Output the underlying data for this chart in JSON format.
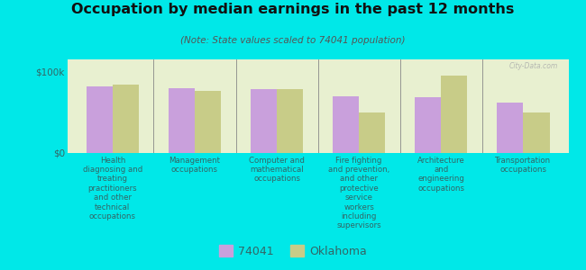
{
  "title": "Occupation by median earnings in the past 12 months",
  "subtitle": "(Note: State values scaled to 74041 population)",
  "background_color": "#00e8e8",
  "chart_bg_top": "#e8f0d0",
  "chart_bg_bottom": "#d8eed8",
  "categories": [
    "Health\ndiagnosing and\ntreating\npractitioners\nand other\ntechnical\noccupations",
    "Management\noccupations",
    "Computer and\nmathematical\noccupations",
    "Fire fighting\nand prevention,\nand other\nprotective\nservice\nworkers\nincluding\nsupervisors",
    "Architecture\nand\nengineering\noccupations",
    "Transportation\noccupations"
  ],
  "series_74041": [
    82000,
    80000,
    78000,
    70000,
    68000,
    62000
  ],
  "series_oklahoma": [
    84000,
    76000,
    78000,
    50000,
    95000,
    50000
  ],
  "color_74041": "#c9a0dc",
  "color_oklahoma": "#c8cc88",
  "ylabel_ticks": [
    "$0",
    "$100k"
  ],
  "ytick_vals": [
    0,
    100000
  ],
  "legend_74041": "74041",
  "legend_oklahoma": "Oklahoma",
  "bar_width": 0.32,
  "ylim_max": 115000,
  "watermark": "City-Data.com"
}
